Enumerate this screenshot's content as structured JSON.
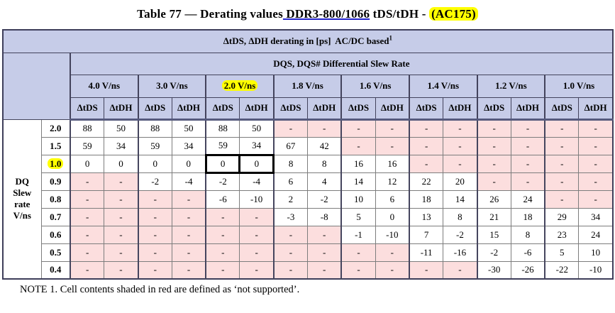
{
  "title": {
    "part1": "Table 77 — Derating values",
    "underlined": " DDR3-800/1066",
    "part2": " tDS/tDH - ",
    "highlighted": "(AC175)"
  },
  "header": {
    "title": "ΔtDS, ΔDH derating in [ps]  AC/DC based",
    "title_superscript": "1",
    "subtitle": "DQS, DQS# Differential Slew Rate",
    "groups": [
      {
        "label": "4.0 V/ns",
        "highlighted": false
      },
      {
        "label": "3.0 V/ns",
        "highlighted": false
      },
      {
        "label": "2.0 V/ns",
        "highlighted": true
      },
      {
        "label": "1.8 V/ns",
        "highlighted": false
      },
      {
        "label": "1.6 V/ns",
        "highlighted": false
      },
      {
        "label": "1.4 V/ns",
        "highlighted": false
      },
      {
        "label": "1.2 V/ns",
        "highlighted": false
      },
      {
        "label": "1.0 V/ns",
        "highlighted": false
      }
    ],
    "subcolumns": [
      "ΔtDS",
      "ΔtDH"
    ]
  },
  "row_axis_label": [
    "DQ",
    "Slew",
    "rate",
    "V/ns"
  ],
  "rows": [
    {
      "label": "2.0",
      "highlighted": false,
      "outlined_cells": [],
      "cells": [
        "88",
        "50",
        "88",
        "50",
        "88",
        "50",
        "-",
        "-",
        "-",
        "-",
        "-",
        "-",
        "-",
        "-",
        "-",
        "-"
      ]
    },
    {
      "label": "1.5",
      "highlighted": false,
      "outlined_cells": [],
      "cells": [
        "59",
        "34",
        "59",
        "34",
        "59",
        "34",
        "67",
        "42",
        "-",
        "-",
        "-",
        "-",
        "-",
        "-",
        "-",
        "-"
      ]
    },
    {
      "label": "1.0",
      "highlighted": true,
      "outlined_cells": [
        4,
        5
      ],
      "cells": [
        "0",
        "0",
        "0",
        "0",
        "0",
        "0",
        "8",
        "8",
        "16",
        "16",
        "-",
        "-",
        "-",
        "-",
        "-",
        "-"
      ]
    },
    {
      "label": "0.9",
      "highlighted": false,
      "outlined_cells": [],
      "cells": [
        "-",
        "-",
        "-2",
        "-4",
        "-2",
        "-4",
        "6",
        "4",
        "14",
        "12",
        "22",
        "20",
        "-",
        "-",
        "-",
        "-"
      ]
    },
    {
      "label": "0.8",
      "highlighted": false,
      "outlined_cells": [],
      "cells": [
        "-",
        "-",
        "-",
        "-",
        "-6",
        "-10",
        "2",
        "-2",
        "10",
        "6",
        "18",
        "14",
        "26",
        "24",
        "-",
        "-"
      ]
    },
    {
      "label": "0.7",
      "highlighted": false,
      "outlined_cells": [],
      "cells": [
        "-",
        "-",
        "-",
        "-",
        "-",
        "-",
        "-3",
        "-8",
        "5",
        "0",
        "13",
        "8",
        "21",
        "18",
        "29",
        "34"
      ]
    },
    {
      "label": "0.6",
      "highlighted": false,
      "outlined_cells": [],
      "cells": [
        "-",
        "-",
        "-",
        "-",
        "-",
        "-",
        "-",
        "-",
        "-1",
        "-10",
        "7",
        "-2",
        "15",
        "8",
        "23",
        "24"
      ]
    },
    {
      "label": "0.5",
      "highlighted": false,
      "outlined_cells": [],
      "cells": [
        "-",
        "-",
        "-",
        "-",
        "-",
        "-",
        "-",
        "-",
        "-",
        "-",
        "-11",
        "-16",
        "-2",
        "-6",
        "5",
        "10"
      ]
    },
    {
      "label": "0.4",
      "highlighted": false,
      "outlined_cells": [],
      "cells": [
        "-",
        "-",
        "-",
        "-",
        "-",
        "-",
        "-",
        "-",
        "-",
        "-",
        "-",
        "-",
        "-30",
        "-26",
        "-22",
        "-10"
      ]
    }
  ],
  "note": "NOTE 1. Cell contents shaded in red are defined as ‘not supported’.",
  "colors": {
    "header_bg": "#c6cce8",
    "not_supported_bg": "#fcdede",
    "highlight_yellow": "#ffff00",
    "underline_blue": "#2323cd"
  }
}
